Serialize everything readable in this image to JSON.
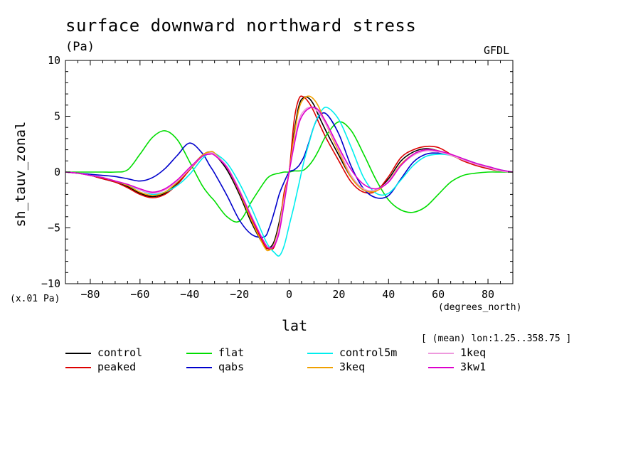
{
  "chart_data": {
    "type": "line",
    "title": "surface downward northward stress",
    "unit": "(Pa)",
    "source": "GFDL",
    "ylabel": "sh_tauv_zonal",
    "xlabel": "lat",
    "x_unit": "(degrees_north)",
    "y_scale_note": "(x.01 Pa)",
    "subnote": "[ (mean) lon:1.25..358.75 ]",
    "xlim": [
      -90,
      90
    ],
    "ylim": [
      -10,
      10
    ],
    "x_ticks": [
      -80,
      -60,
      -40,
      -20,
      0,
      20,
      40,
      60,
      80
    ],
    "y_ticks": [
      -10,
      -5,
      0,
      5,
      10
    ],
    "x": [
      -90,
      -85,
      -80,
      -75,
      -70,
      -65,
      -60,
      -55,
      -50,
      -45,
      -40,
      -35,
      -32,
      -30,
      -25,
      -20,
      -15,
      -10,
      -8,
      -6,
      -4,
      -2,
      0,
      2,
      4,
      6,
      8,
      10,
      12,
      15,
      20,
      25,
      30,
      35,
      40,
      45,
      50,
      55,
      60,
      65,
      70,
      75,
      80,
      85,
      90
    ],
    "series": [
      {
        "name": "control",
        "color": "#000000",
        "values": [
          0,
          -0.1,
          -0.3,
          -0.6,
          -0.9,
          -1.3,
          -1.9,
          -2.2,
          -1.9,
          -1.0,
          0.3,
          1.5,
          1.8,
          1.6,
          0.2,
          -2.0,
          -4.6,
          -6.6,
          -6.8,
          -6.2,
          -4.5,
          -2.1,
          0,
          3.5,
          6.0,
          6.7,
          6.6,
          6.0,
          5.0,
          3.6,
          1.5,
          -0.5,
          -1.6,
          -1.6,
          -0.6,
          1.0,
          1.8,
          2.1,
          1.9,
          1.5,
          1.1,
          0.7,
          0.4,
          0.1,
          0
        ]
      },
      {
        "name": "peaked",
        "color": "#dd0000",
        "values": [
          0,
          -0.1,
          -0.3,
          -0.6,
          -0.9,
          -1.4,
          -2.0,
          -2.3,
          -2.0,
          -1.1,
          0.2,
          1.4,
          1.7,
          1.6,
          0.4,
          -1.6,
          -4.2,
          -6.5,
          -6.9,
          -6.7,
          -5.0,
          -1.8,
          0,
          4.6,
          6.6,
          6.7,
          6.2,
          5.4,
          4.4,
          3.0,
          1.0,
          -0.9,
          -1.8,
          -1.7,
          -0.4,
          1.3,
          2.0,
          2.3,
          2.2,
          1.6,
          1.0,
          0.6,
          0.3,
          0.1,
          0
        ]
      },
      {
        "name": "flat",
        "color": "#00dd00",
        "values": [
          0,
          0,
          0,
          0,
          0,
          0.2,
          1.6,
          3.1,
          3.7,
          2.9,
          0.9,
          -1.2,
          -2.1,
          -2.6,
          -4.0,
          -4.4,
          -2.6,
          -0.9,
          -0.4,
          -0.2,
          -0.1,
          0,
          0,
          0.1,
          0.1,
          0.2,
          0.6,
          1.2,
          2.0,
          3.3,
          4.5,
          3.7,
          1.6,
          -0.7,
          -2.5,
          -3.4,
          -3.6,
          -3.1,
          -2.0,
          -0.9,
          -0.3,
          -0.1,
          0,
          0,
          0
        ]
      },
      {
        "name": "qabs",
        "color": "#0000cc",
        "values": [
          0,
          -0.1,
          -0.2,
          -0.3,
          -0.4,
          -0.6,
          -0.8,
          -0.5,
          0.3,
          1.5,
          2.6,
          1.7,
          0.6,
          -0.1,
          -2.1,
          -4.3,
          -5.6,
          -5.8,
          -5.0,
          -3.6,
          -2.0,
          -0.9,
          0,
          0.2,
          0.6,
          1.4,
          2.7,
          4.1,
          5.0,
          5.2,
          3.4,
          0.5,
          -1.5,
          -2.3,
          -2.1,
          -0.6,
          0.9,
          1.6,
          1.7,
          1.5,
          1.1,
          0.7,
          0.4,
          0.1,
          0
        ]
      },
      {
        "name": "control5m",
        "color": "#00eeee",
        "values": [
          0,
          -0.1,
          -0.3,
          -0.5,
          -0.8,
          -1.2,
          -1.6,
          -2.0,
          -1.8,
          -1.2,
          -0.2,
          1.2,
          1.7,
          1.7,
          0.8,
          -1.0,
          -3.3,
          -5.9,
          -6.7,
          -7.2,
          -7.5,
          -6.6,
          -4.8,
          -3.0,
          -1.0,
          1.0,
          2.6,
          4.1,
          5.1,
          5.8,
          4.7,
          2.2,
          -0.5,
          -1.9,
          -1.9,
          -0.7,
          0.6,
          1.4,
          1.6,
          1.5,
          1.2,
          0.8,
          0.5,
          0.2,
          0
        ]
      },
      {
        "name": "3keq",
        "color": "#f0a000",
        "values": [
          0,
          -0.1,
          -0.3,
          -0.5,
          -0.8,
          -1.2,
          -1.8,
          -2.1,
          -1.8,
          -0.9,
          0.3,
          1.5,
          1.8,
          1.7,
          0.4,
          -1.8,
          -4.4,
          -6.7,
          -7.0,
          -6.4,
          -4.8,
          -2.2,
          0,
          3.2,
          5.7,
          6.6,
          6.8,
          6.5,
          5.8,
          4.2,
          1.8,
          -0.5,
          -1.6,
          -1.7,
          -0.8,
          0.7,
          1.6,
          2.0,
          1.9,
          1.5,
          1.1,
          0.7,
          0.4,
          0.1,
          0
        ]
      },
      {
        "name": "1keq",
        "color": "#ee99dd",
        "values": [
          0,
          -0.1,
          -0.3,
          -0.5,
          -0.8,
          -1.1,
          -1.6,
          -1.9,
          -1.6,
          -0.8,
          0.3,
          1.4,
          1.7,
          1.6,
          0.5,
          -1.6,
          -4.0,
          -6.3,
          -6.8,
          -6.5,
          -5.0,
          -2.5,
          0,
          2.6,
          4.7,
          5.5,
          5.8,
          5.7,
          5.3,
          4.2,
          2.0,
          -0.3,
          -1.5,
          -1.6,
          -0.8,
          0.6,
          1.5,
          1.9,
          1.8,
          1.5,
          1.1,
          0.7,
          0.4,
          0.1,
          0
        ]
      },
      {
        "name": "3kw1",
        "color": "#dd00cc",
        "values": [
          0,
          -0.1,
          -0.3,
          -0.5,
          -0.8,
          -1.1,
          -1.5,
          -1.8,
          -1.5,
          -0.7,
          0.4,
          1.4,
          1.6,
          1.5,
          0.4,
          -1.7,
          -4.1,
          -6.3,
          -6.8,
          -6.6,
          -5.4,
          -2.8,
          0,
          2.4,
          4.4,
          5.3,
          5.7,
          5.8,
          5.5,
          4.4,
          2.2,
          0.2,
          -1.1,
          -1.5,
          -0.9,
          0.6,
          1.6,
          2.0,
          1.9,
          1.6,
          1.2,
          0.8,
          0.5,
          0.2,
          0
        ]
      }
    ]
  }
}
